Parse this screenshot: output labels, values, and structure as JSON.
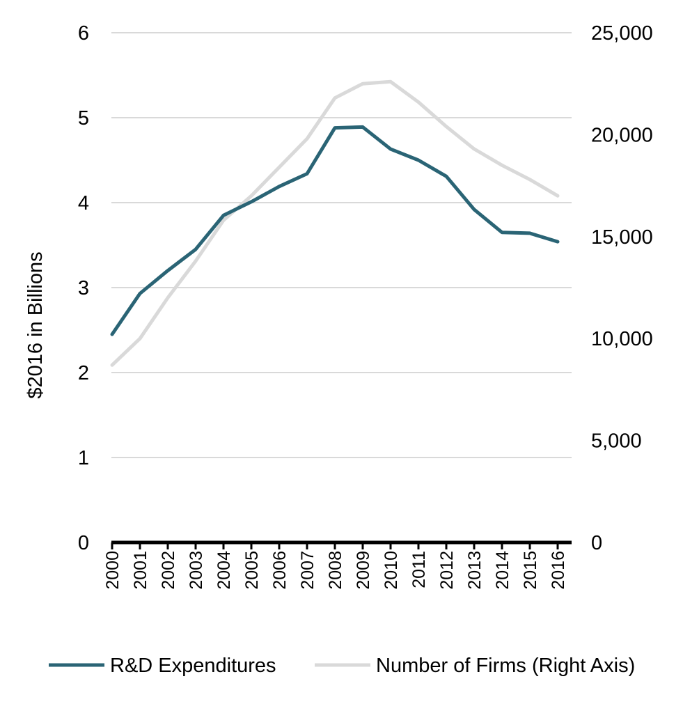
{
  "chart_data": {
    "type": "line",
    "title": "",
    "x": [
      "2000",
      "2001",
      "2002",
      "2003",
      "2004",
      "2005",
      "2006",
      "2007",
      "2008",
      "2009",
      "2010",
      "2011",
      "2012",
      "2013",
      "2014",
      "2015",
      "2016"
    ],
    "series": [
      {
        "name": "R&D Expenditures",
        "axis": "left",
        "color": "#2a6475",
        "values": [
          2.45,
          2.93,
          3.2,
          3.45,
          3.85,
          4.01,
          4.19,
          4.34,
          4.88,
          4.89,
          4.63,
          4.5,
          4.31,
          3.92,
          3.65,
          3.64,
          3.54
        ]
      },
      {
        "name": "Number of Firms (Right Axis)",
        "axis": "right",
        "color": "#d9d9d9",
        "values": [
          8700,
          10000,
          12000,
          13800,
          15800,
          17000,
          18400,
          19800,
          21800,
          22500,
          22600,
          21600,
          20400,
          19300,
          18500,
          17800,
          17000
        ]
      }
    ],
    "ylabel": "$2016 in Billions",
    "ylim": [
      0,
      6
    ],
    "yticks": [
      "0",
      "1",
      "2",
      "3",
      "4",
      "5",
      "6"
    ],
    "y2lim": [
      0,
      25000
    ],
    "y2ticks": [
      "0",
      "5,000",
      "10,000",
      "15,000",
      "20,000",
      "25,000"
    ],
    "legend_position": "bottom",
    "grid": true
  }
}
